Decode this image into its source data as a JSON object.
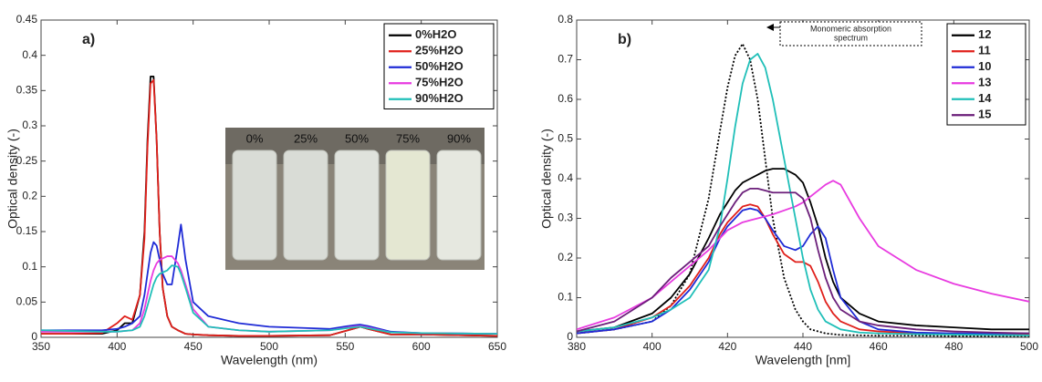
{
  "chart_data": [
    {
      "type": "line",
      "title": "a)",
      "xlabel": "Wavelength (nm)",
      "ylabel": "Optical density (-)",
      "x": [
        350,
        370,
        390,
        400,
        405,
        410,
        415,
        418,
        420,
        422,
        424,
        426,
        428,
        430,
        433,
        436,
        440,
        442,
        445,
        450,
        460,
        480,
        500,
        540,
        555,
        560,
        565,
        580,
        600,
        650
      ],
      "series": [
        {
          "name": "0%H2O",
          "color": "#000000",
          "values": [
            0.005,
            0.005,
            0.005,
            0.01,
            0.02,
            0.02,
            0.06,
            0.15,
            0.28,
            0.37,
            0.37,
            0.28,
            0.15,
            0.07,
            0.03,
            0.015,
            0.01,
            0.008,
            0.005,
            0.004,
            0.003,
            0.002,
            0.002,
            0.003,
            0.012,
            0.015,
            0.012,
            0.004,
            0.004,
            0.002
          ]
        },
        {
          "name": "25%H2O",
          "color": "#e0201b",
          "values": [
            0.005,
            0.005,
            0.006,
            0.02,
            0.03,
            0.025,
            0.06,
            0.14,
            0.27,
            0.36,
            0.365,
            0.28,
            0.15,
            0.07,
            0.03,
            0.015,
            0.01,
            0.008,
            0.005,
            0.004,
            0.003,
            0.002,
            0.002,
            0.003,
            0.012,
            0.015,
            0.012,
            0.004,
            0.004,
            0.002
          ]
        },
        {
          "name": "50%H2O",
          "color": "#1f2bd6",
          "values": [
            0.01,
            0.01,
            0.01,
            0.012,
            0.015,
            0.02,
            0.03,
            0.06,
            0.09,
            0.12,
            0.135,
            0.13,
            0.11,
            0.09,
            0.075,
            0.075,
            0.13,
            0.16,
            0.11,
            0.05,
            0.03,
            0.02,
            0.015,
            0.012,
            0.017,
            0.018,
            0.016,
            0.008,
            0.006,
            0.005
          ]
        },
        {
          "name": "75%H2O",
          "color": "#e83be0",
          "values": [
            0.008,
            0.008,
            0.008,
            0.008,
            0.009,
            0.01,
            0.02,
            0.04,
            0.06,
            0.08,
            0.095,
            0.105,
            0.11,
            0.112,
            0.115,
            0.115,
            0.105,
            0.095,
            0.075,
            0.04,
            0.015,
            0.01,
            0.008,
            0.01,
            0.015,
            0.016,
            0.014,
            0.007,
            0.006,
            0.005
          ]
        },
        {
          "name": "90%H2O",
          "color": "#1fbfb8",
          "values": [
            0.01,
            0.009,
            0.008,
            0.008,
            0.009,
            0.01,
            0.015,
            0.03,
            0.045,
            0.06,
            0.075,
            0.085,
            0.09,
            0.092,
            0.095,
            0.102,
            0.1,
            0.09,
            0.07,
            0.035,
            0.015,
            0.01,
            0.008,
            0.01,
            0.014,
            0.015,
            0.013,
            0.007,
            0.006,
            0.005
          ]
        }
      ],
      "inset_labels": [
        "0%",
        "25%",
        "50%",
        "75%",
        "90%"
      ],
      "xlim": [
        350,
        650
      ],
      "xticks": [
        350,
        400,
        450,
        500,
        550,
        600,
        650
      ],
      "ylim": [
        0,
        0.45
      ],
      "yticks": [
        0,
        0.05,
        0.1,
        0.15,
        0.2,
        0.25,
        0.3,
        0.35,
        0.4,
        0.45
      ],
      "legend": "upper right"
    },
    {
      "type": "line",
      "title": "b)",
      "xlabel": "Wavelength [nm]",
      "ylabel": "Optical density (-)",
      "x": [
        380,
        390,
        400,
        405,
        410,
        415,
        418,
        420,
        422,
        424,
        426,
        428,
        430,
        432,
        435,
        438,
        440,
        442,
        444,
        446,
        448,
        450,
        455,
        460,
        470,
        480,
        490,
        500
      ],
      "series": [
        {
          "name": "12",
          "color": "#000000",
          "values": [
            0.015,
            0.025,
            0.06,
            0.1,
            0.16,
            0.25,
            0.31,
            0.34,
            0.37,
            0.39,
            0.4,
            0.41,
            0.42,
            0.425,
            0.425,
            0.41,
            0.39,
            0.34,
            0.28,
            0.2,
            0.14,
            0.1,
            0.06,
            0.04,
            0.03,
            0.025,
            0.02,
            0.02
          ]
        },
        {
          "name": "11",
          "color": "#e0201b",
          "values": [
            0.01,
            0.02,
            0.05,
            0.08,
            0.13,
            0.2,
            0.26,
            0.29,
            0.31,
            0.33,
            0.335,
            0.33,
            0.3,
            0.26,
            0.21,
            0.19,
            0.19,
            0.18,
            0.14,
            0.09,
            0.06,
            0.04,
            0.02,
            0.015,
            0.01,
            0.01,
            0.008,
            0.007
          ]
        },
        {
          "name": "10",
          "color": "#1f2bd6",
          "values": [
            0.01,
            0.02,
            0.04,
            0.07,
            0.12,
            0.19,
            0.25,
            0.28,
            0.3,
            0.32,
            0.325,
            0.32,
            0.3,
            0.27,
            0.23,
            0.22,
            0.23,
            0.26,
            0.28,
            0.25,
            0.17,
            0.1,
            0.04,
            0.02,
            0.012,
            0.01,
            0.01,
            0.01
          ]
        },
        {
          "name": "13",
          "color": "#e83be0",
          "values": [
            0.02,
            0.05,
            0.1,
            0.14,
            0.18,
            0.22,
            0.25,
            0.27,
            0.28,
            0.29,
            0.295,
            0.3,
            0.305,
            0.31,
            0.32,
            0.33,
            0.34,
            0.355,
            0.37,
            0.385,
            0.395,
            0.385,
            0.3,
            0.23,
            0.17,
            0.135,
            0.11,
            0.09
          ]
        },
        {
          "name": "14",
          "color": "#1fbfb8",
          "values": [
            0.015,
            0.025,
            0.05,
            0.07,
            0.1,
            0.17,
            0.28,
            0.4,
            0.53,
            0.64,
            0.7,
            0.715,
            0.68,
            0.6,
            0.45,
            0.3,
            0.2,
            0.12,
            0.07,
            0.04,
            0.03,
            0.02,
            0.012,
            0.01,
            0.008,
            0.007,
            0.006,
            0.005
          ]
        },
        {
          "name": "15",
          "color": "#6b1f7a",
          "values": [
            0.015,
            0.04,
            0.1,
            0.15,
            0.19,
            0.23,
            0.28,
            0.31,
            0.34,
            0.365,
            0.375,
            0.375,
            0.37,
            0.365,
            0.365,
            0.365,
            0.35,
            0.3,
            0.22,
            0.15,
            0.1,
            0.07,
            0.04,
            0.03,
            0.02,
            0.015,
            0.012,
            0.01
          ]
        }
      ],
      "annotation": {
        "text": [
          "Monomeric absorption",
          "spectrum"
        ],
        "color": "#000000",
        "values": [
          0.01,
          0.02,
          0.04,
          0.08,
          0.16,
          0.35,
          0.52,
          0.63,
          0.71,
          0.74,
          0.7,
          0.6,
          0.45,
          0.3,
          0.15,
          0.07,
          0.04,
          0.02,
          0.015,
          0.01,
          0.008,
          0.006,
          0.005,
          0.004,
          0.004,
          0.003,
          0.003,
          0.003
        ]
      },
      "xlim": [
        380,
        500
      ],
      "xticks": [
        380,
        400,
        420,
        440,
        460,
        480,
        500
      ],
      "ylim": [
        0,
        0.8
      ],
      "yticks": [
        0,
        0.1,
        0.2,
        0.3,
        0.4,
        0.5,
        0.6,
        0.7,
        0.8
      ],
      "legend": "upper right"
    }
  ]
}
